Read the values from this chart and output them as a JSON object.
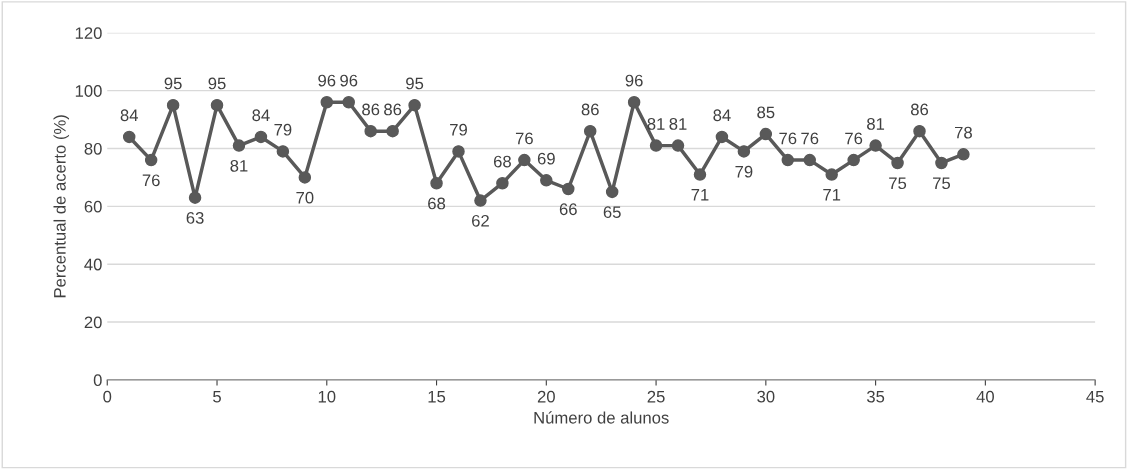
{
  "chart_data": {
    "type": "line",
    "xlabel": "Número de alunos",
    "ylabel": "Percentual de acerto (%)",
    "x": [
      1,
      2,
      3,
      4,
      5,
      6,
      7,
      8,
      9,
      10,
      11,
      12,
      13,
      14,
      15,
      16,
      17,
      18,
      19,
      20,
      21,
      22,
      23,
      24,
      25,
      26,
      27,
      28,
      29,
      30,
      31,
      32,
      33,
      34,
      35,
      36,
      37,
      38,
      39
    ],
    "series": [
      {
        "color": "#595959",
        "values": [
          84,
          76,
          95,
          63,
          95,
          81,
          84,
          79,
          70,
          96,
          96,
          86,
          86,
          95,
          68,
          79,
          62,
          68,
          76,
          69,
          66,
          86,
          65,
          96,
          81,
          81,
          71,
          84,
          79,
          85,
          76,
          76,
          71,
          76,
          81,
          75,
          86,
          75,
          78
        ]
      }
    ],
    "xlim": [
      0,
      45
    ],
    "xticks": [
      0,
      5,
      10,
      15,
      20,
      25,
      30,
      35,
      40,
      45
    ],
    "ylim": [
      0,
      120
    ],
    "yticks": [
      0,
      20,
      40,
      60,
      80,
      100,
      120
    ],
    "grid": "y",
    "marker": "circle",
    "line_style": "solid",
    "data_labels": true
  }
}
